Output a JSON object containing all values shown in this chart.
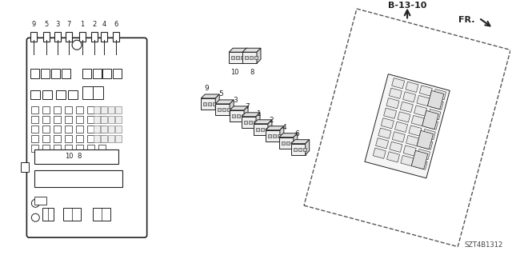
{
  "bg_color": "#ffffff",
  "title": "",
  "diagram_label": "B-13-10",
  "part_number": "SZT4B1312",
  "fr_label": "FR.",
  "connector_numbers_top": [
    "9",
    "5",
    "3",
    "7",
    "1",
    "2",
    "4",
    "6"
  ],
  "connector_numbers_mid": [
    "10",
    "8"
  ],
  "exploded_numbers": [
    "9",
    "5",
    "3",
    "7",
    "1",
    "2",
    "4",
    "6",
    "10",
    "8"
  ],
  "line_color": "#222222",
  "dashed_box_color": "#555555"
}
